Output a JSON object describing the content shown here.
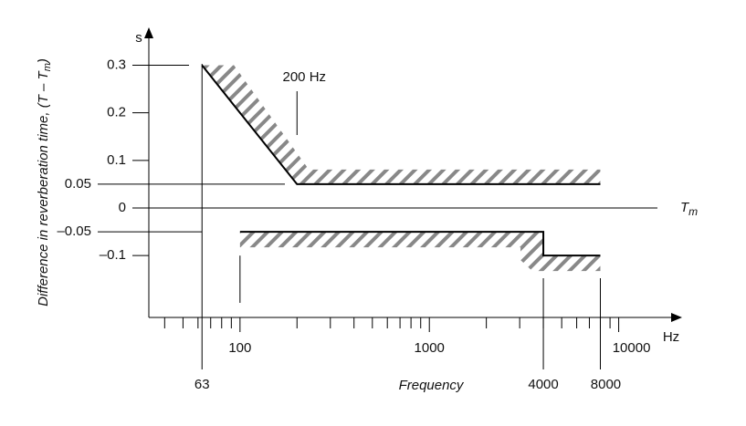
{
  "chart_data": {
    "type": "line",
    "y_label": {
      "text": "Difference in reverberation time, (T – T",
      "subscript": "m",
      "close": ")"
    },
    "y_unit": "s",
    "x_unit": "Hz",
    "x_label": "Frequency",
    "reference_label": {
      "text": "T",
      "subscript": "m"
    },
    "annotation": {
      "text": "200 Hz",
      "x": 200
    },
    "log_x": true,
    "xlim": [
      33,
      20000
    ],
    "ylim": [
      -0.23,
      0.37
    ],
    "xticks": [
      100,
      1000,
      10000
    ],
    "xminor_ticks": [
      40,
      50,
      60,
      70,
      80,
      90,
      200,
      300,
      400,
      500,
      600,
      700,
      800,
      900,
      2000,
      3000,
      4000,
      5000,
      6000,
      7000,
      8000,
      9000
    ],
    "x_markers": [
      63,
      4000,
      8000
    ],
    "yticks": [
      0.3,
      0.2,
      0.1,
      0.05,
      0,
      {
        "value": -0.05,
        "label": "–0.05"
      },
      {
        "value": -0.1,
        "label": "–0.1"
      }
    ],
    "series": [
      {
        "color": "#000000",
        "x": [
          63,
          200,
          8000
        ],
        "values": [
          0.3,
          0.05,
          0.05
        ]
      },
      {
        "color": "#000000",
        "x": [
          100,
          4000,
          4000,
          8000
        ],
        "values": [
          -0.05,
          -0.05,
          -0.1,
          -0.1
        ]
      }
    ]
  }
}
